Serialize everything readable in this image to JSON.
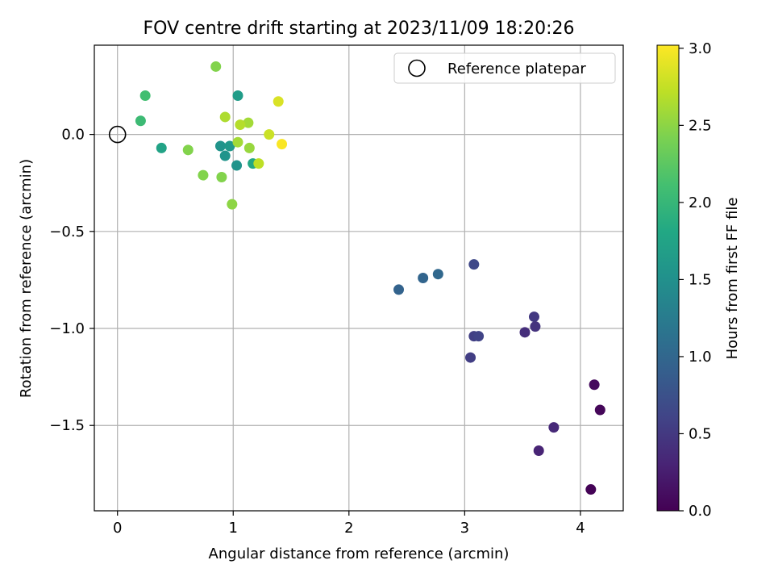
{
  "chart_data": {
    "type": "scatter",
    "title": "FOV centre drift starting at 2023/11/09 18:20:26",
    "xlabel": "Angular distance from reference (arcmin)",
    "ylabel": "Rotation from reference (arcmin)",
    "xlim": [
      -0.2,
      4.37
    ],
    "ylim": [
      -1.94,
      0.46
    ],
    "x_ticks": [
      0,
      1,
      2,
      3,
      4
    ],
    "x_tick_labels": [
      "0",
      "1",
      "2",
      "3",
      "4"
    ],
    "y_ticks": [
      0.0,
      -0.5,
      -1.0,
      -1.5
    ],
    "y_tick_labels": [
      "0.0",
      "−0.5",
      "−1.0",
      "−1.5"
    ],
    "grid": true,
    "legend": {
      "position": "top-right",
      "entries": [
        "Reference platepar"
      ]
    },
    "reference_point": {
      "x": 0,
      "y": 0
    },
    "colorbar": {
      "label": "Hours from first FF file",
      "colormap": "viridis",
      "range": [
        0.0,
        3.02
      ],
      "ticks": [
        0.0,
        0.5,
        1.0,
        1.5,
        2.0,
        2.5,
        3.0
      ],
      "tick_labels": [
        "0.0",
        "0.5",
        "1.0",
        "1.5",
        "2.0",
        "2.5",
        "3.0"
      ]
    },
    "points": [
      {
        "x": 4.09,
        "y": -1.83,
        "c": 0.02
      },
      {
        "x": 4.17,
        "y": -1.42,
        "c": 0.05
      },
      {
        "x": 4.12,
        "y": -1.29,
        "c": 0.08
      },
      {
        "x": 3.64,
        "y": -1.63,
        "c": 0.3
      },
      {
        "x": 3.77,
        "y": -1.51,
        "c": 0.35
      },
      {
        "x": 3.52,
        "y": -1.02,
        "c": 0.4
      },
      {
        "x": 3.61,
        "y": -0.99,
        "c": 0.45
      },
      {
        "x": 3.6,
        "y": -0.94,
        "c": 0.5
      },
      {
        "x": 3.05,
        "y": -1.15,
        "c": 0.55
      },
      {
        "x": 3.08,
        "y": -1.04,
        "c": 0.57
      },
      {
        "x": 3.12,
        "y": -1.04,
        "c": 0.6
      },
      {
        "x": 3.08,
        "y": -0.67,
        "c": 0.65
      },
      {
        "x": 2.43,
        "y": -0.8,
        "c": 0.95
      },
      {
        "x": 2.64,
        "y": -0.74,
        "c": 0.98
      },
      {
        "x": 2.77,
        "y": -0.72,
        "c": 1.02
      },
      {
        "x": 0.93,
        "y": -0.11,
        "c": 1.55
      },
      {
        "x": 0.89,
        "y": -0.06,
        "c": 1.55
      },
      {
        "x": 0.97,
        "y": -0.06,
        "c": 1.6
      },
      {
        "x": 1.03,
        "y": -0.16,
        "c": 1.55
      },
      {
        "x": 1.04,
        "y": 0.2,
        "c": 1.65
      },
      {
        "x": 0.38,
        "y": -0.07,
        "c": 1.75
      },
      {
        "x": 1.17,
        "y": -0.15,
        "c": 1.8
      },
      {
        "x": 0.2,
        "y": 0.07,
        "c": 2.05
      },
      {
        "x": 0.24,
        "y": 0.2,
        "c": 2.1
      },
      {
        "x": 0.61,
        "y": -0.08,
        "c": 2.45
      },
      {
        "x": 0.85,
        "y": 0.35,
        "c": 2.45
      },
      {
        "x": 0.74,
        "y": -0.21,
        "c": 2.45
      },
      {
        "x": 0.9,
        "y": -0.22,
        "c": 2.45
      },
      {
        "x": 0.99,
        "y": -0.36,
        "c": 2.5
      },
      {
        "x": 1.14,
        "y": -0.07,
        "c": 2.55
      },
      {
        "x": 1.04,
        "y": -0.04,
        "c": 2.6
      },
      {
        "x": 1.13,
        "y": 0.06,
        "c": 2.6
      },
      {
        "x": 0.93,
        "y": 0.09,
        "c": 2.65
      },
      {
        "x": 1.06,
        "y": 0.05,
        "c": 2.68
      },
      {
        "x": 1.22,
        "y": -0.15,
        "c": 2.72
      },
      {
        "x": 1.31,
        "y": 0.0,
        "c": 2.78
      },
      {
        "x": 1.39,
        "y": 0.17,
        "c": 2.85
      },
      {
        "x": 1.42,
        "y": -0.05,
        "c": 3.0
      }
    ]
  }
}
